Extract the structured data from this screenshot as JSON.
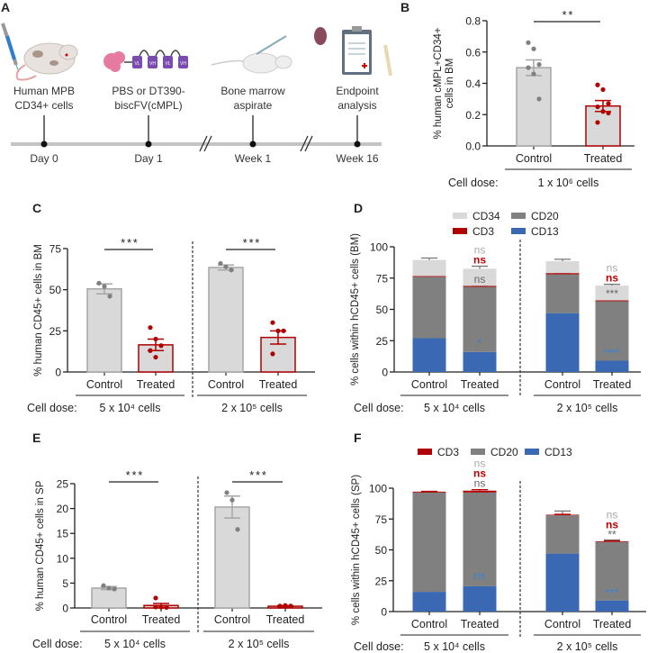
{
  "panel_a": {
    "letter": "A",
    "steps": [
      {
        "line1": "Human MPB",
        "line2": "CD34+ cells",
        "time": "Day 0"
      },
      {
        "line1": "PBS or DT390-",
        "line2": "biscFV(cMPL)",
        "time": "Day 1"
      },
      {
        "line1": "Bone marrow",
        "line2": "aspirate",
        "time": "Week 1"
      },
      {
        "line1": "Endpoint",
        "line2": "analysis",
        "time": "Week 16"
      }
    ],
    "vh_labels": [
      "VL",
      "VH",
      "VL",
      "VH"
    ]
  },
  "colors": {
    "control_fill": "#d9d9d9",
    "control_stroke": "#a6a6a6",
    "control_point": "#808080",
    "treated_stroke": "#b00000",
    "treated_point": "#b00000",
    "CD34": "#d9d9d9",
    "CD3": "#b00000",
    "CD20": "#808080",
    "CD13": "#3a68b3",
    "ann_light": "#aaaaaa",
    "ann_red": "#c00000",
    "ann_dark": "#666666",
    "ann_blue": "#3a80d0"
  },
  "dose_prefix": "Cell dose:",
  "chart_data": [
    {
      "panel": "B",
      "type": "bar",
      "ylabel": [
        "% human cMPL+CD34+",
        "cells in BM"
      ],
      "ylim": [
        0,
        0.8
      ],
      "yticks": [
        0,
        0.2,
        0.4,
        0.6,
        0.8
      ],
      "ytick_labels": [
        "0.0",
        "0.2",
        "0.4",
        "0.6",
        "0.8"
      ],
      "groups": [
        {
          "dose": "1 x 10⁶ cells",
          "significance": "**",
          "bars": [
            {
              "category": "Control",
              "mean": 0.5,
              "sem": 0.05,
              "points": [
                0.66,
                0.62,
                0.52,
                0.5,
                0.46,
                0.3
              ]
            },
            {
              "category": "Treated",
              "mean": 0.255,
              "sem": 0.035,
              "points": [
                0.39,
                0.36,
                0.27,
                0.25,
                0.22,
                0.21,
                0.15
              ]
            }
          ]
        }
      ]
    },
    {
      "panel": "C",
      "type": "bar",
      "ylabel": [
        "% human CD45+ cells in BM"
      ],
      "ylim": [
        0,
        75
      ],
      "yticks": [
        0,
        25,
        50,
        75
      ],
      "ytick_labels": [
        "0",
        "25",
        "50",
        "75"
      ],
      "groups": [
        {
          "dose": "5 x 10⁴ cells",
          "significance": "***",
          "bars": [
            {
              "category": "Control",
              "mean": 50.5,
              "sem": 3,
              "points": [
                54,
                52,
                46
              ]
            },
            {
              "category": "Treated",
              "mean": 16.5,
              "sem": 3.5,
              "points": [
                27,
                20,
                16,
                13,
                9
              ]
            }
          ]
        },
        {
          "dose": "2 x 10⁵ cells",
          "significance": "***",
          "bars": [
            {
              "category": "Control",
              "mean": 63.5,
              "sem": 1.5,
              "points": [
                66,
                64,
                62
              ]
            },
            {
              "category": "Treated",
              "mean": 21,
              "sem": 4,
              "points": [
                30,
                25,
                25,
                11
              ]
            }
          ]
        }
      ]
    },
    {
      "panel": "D",
      "type": "stacked_bar",
      "ylabel": [
        "% cells within hCD45+ cells (BM)"
      ],
      "ylim": [
        0,
        100
      ],
      "yticks": [
        0,
        25,
        50,
        75,
        100
      ],
      "ytick_labels": [
        "0",
        "25",
        "50",
        "75",
        "100"
      ],
      "legend": [
        "CD34",
        "CD20",
        "CD3",
        "CD13"
      ],
      "series_order": [
        "CD13",
        "CD20",
        "CD3",
        "CD34"
      ],
      "groups": [
        {
          "dose": "5 x 10⁴ cells",
          "bars": [
            {
              "category": "Control",
              "values": {
                "CD13": 27,
                "CD20": 49,
                "CD3": 0.6,
                "CD34": 12.9
              },
              "errors": {
                "CD13": 2.5,
                "CD20": 1,
                "CD3": 0.3,
                "CD34": 1.5
              },
              "annotations": {}
            },
            {
              "category": "Treated",
              "values": {
                "CD13": 16,
                "CD20": 52,
                "CD3": 0.8,
                "CD34": 13.7
              },
              "errors": {
                "CD13": 2,
                "CD20": 2.5,
                "CD3": 0.3,
                "CD34": 2
              },
              "annotations": {
                "CD13": "*",
                "CD20": "ns",
                "CD3": "ns",
                "CD34": "ns"
              }
            }
          ]
        },
        {
          "dose": "2 x 10⁵ cells",
          "bars": [
            {
              "category": "Control",
              "values": {
                "CD13": 47,
                "CD20": 31,
                "CD3": 1,
                "CD34": 9.5
              },
              "errors": {
                "CD13": 6,
                "CD20": 3,
                "CD3": 0.3,
                "CD34": 1.5
              },
              "annotations": {}
            },
            {
              "category": "Treated",
              "values": {
                "CD13": 9,
                "CD20": 47.5,
                "CD3": 0.7,
                "CD34": 11.8
              },
              "errors": {
                "CD13": 1,
                "CD20": 1.5,
                "CD3": 0.3,
                "CD34": 1
              },
              "annotations": {
                "CD13": "****",
                "CD20": "***",
                "CD3": "ns",
                "CD34": "ns"
              }
            }
          ]
        }
      ]
    },
    {
      "panel": "E",
      "type": "bar",
      "ylabel": [
        "% human CD45+ cells in SP"
      ],
      "ylim": [
        0,
        25
      ],
      "yticks": [
        0,
        5,
        10,
        15,
        20,
        25
      ],
      "ytick_labels": [
        "0",
        "5",
        "10",
        "15",
        "20",
        "25"
      ],
      "groups": [
        {
          "dose": "5 x 10⁴ cells",
          "significance": "***",
          "bars": [
            {
              "category": "Control",
              "mean": 4.0,
              "sem": 0.3,
              "points": [
                4.5,
                4.0,
                3.8
              ]
            },
            {
              "category": "Treated",
              "mean": 0.5,
              "sem": 0.4,
              "points": [
                2.0,
                0.2,
                0.1,
                0.2,
                0.2
              ]
            }
          ]
        },
        {
          "dose": "2 x 10⁵ cells",
          "significance": "***",
          "bars": [
            {
              "category": "Control",
              "mean": 20.3,
              "sem": 2.2,
              "points": [
                23.2,
                21.7,
                15.8
              ]
            },
            {
              "category": "Treated",
              "mean": 0.35,
              "sem": 0.1,
              "points": [
                0.3,
                0.5,
                0.4,
                0.4,
                0.3
              ]
            }
          ]
        }
      ]
    },
    {
      "panel": "F",
      "type": "stacked_bar",
      "ylabel": [
        "% cells within hCD45+ cells (SP)"
      ],
      "ylim": [
        0,
        100
      ],
      "yticks": [
        0,
        25,
        50,
        75,
        100
      ],
      "ytick_labels": [
        "0",
        "25",
        "50",
        "75",
        "100"
      ],
      "legend": [
        "CD3",
        "CD20",
        "CD13"
      ],
      "series_order": [
        "CD13",
        "CD20",
        "CD3"
      ],
      "groups": [
        {
          "dose": "5 x 10⁴ cells",
          "bars": [
            {
              "category": "Control",
              "values": {
                "CD13": 16,
                "CD20": 80.5,
                "CD3": 0.7
              },
              "errors": {
                "CD13": 0.7,
                "CD20": 0.3,
                "CD3": 0.2
              },
              "annotations": {}
            },
            {
              "category": "Treated",
              "values": {
                "CD13": 20.5,
                "CD20": 76,
                "CD3": 1.5
              },
              "errors": {
                "CD13": 3.5,
                "CD20": 0.5,
                "CD3": 0.8
              },
              "annotations": {
                "CD13": "ns",
                "CD20": "ns",
                "CD3": "ns",
                "CD34": "ns"
              }
            }
          ]
        },
        {
          "dose": "2 x 10⁵ cells",
          "bars": [
            {
              "category": "Control",
              "values": {
                "CD13": 47,
                "CD20": 31,
                "CD3": 0.5
              },
              "errors": {
                "CD13": 6,
                "CD20": 3.5,
                "CD3": 0.3
              },
              "annotations": {}
            },
            {
              "category": "Treated",
              "values": {
                "CD13": 9,
                "CD20": 47.5,
                "CD3": 0.5
              },
              "errors": {
                "CD13": 1,
                "CD20": 1.5,
                "CD3": 0.3
              },
              "annotations": {
                "CD13": "***",
                "CD20": "**",
                "CD3": "ns",
                "CD34": "ns"
              }
            }
          ]
        }
      ]
    }
  ]
}
